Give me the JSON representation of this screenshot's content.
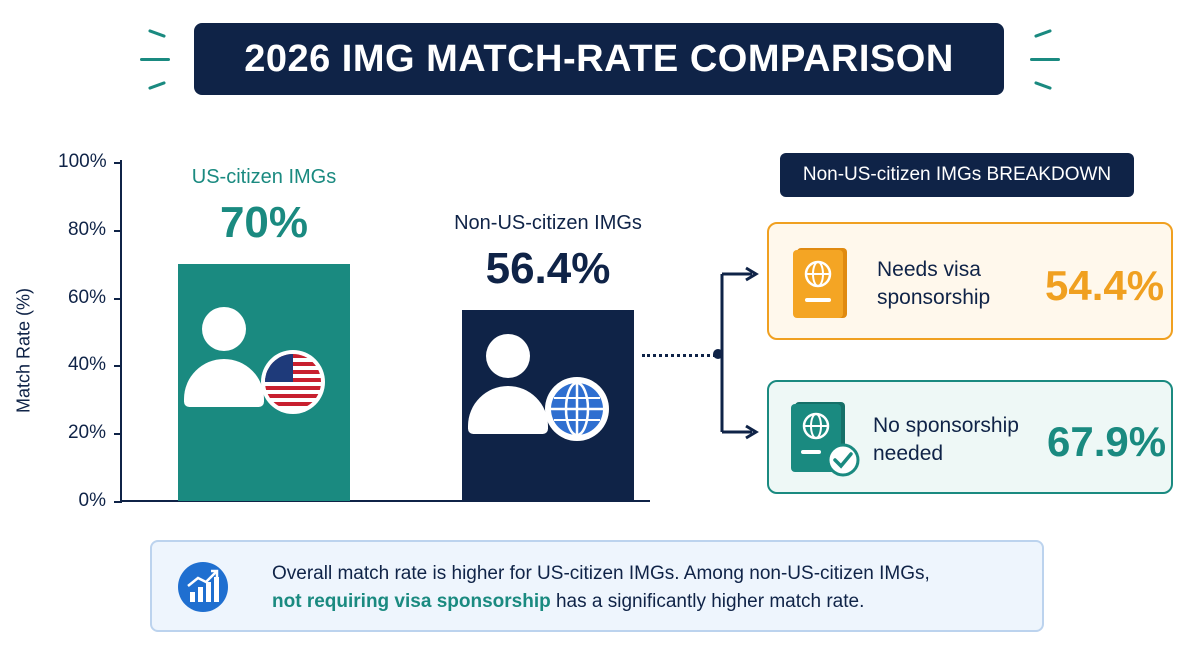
{
  "title": "2026 IMG MATCH-RATE COMPARISON",
  "chart_data": {
    "type": "bar",
    "categories": [
      "US-citizen IMGs",
      "Non-US-citizen IMGs"
    ],
    "values": [
      70,
      56.4
    ],
    "value_labels": [
      "70%",
      "56.4%"
    ],
    "ylabel": "Match Rate (%)",
    "ylim": [
      0,
      100
    ],
    "yticks": [
      "0%",
      "20%",
      "40%",
      "60%",
      "80%",
      "100%"
    ],
    "colors": [
      "#1a8a80",
      "#0f2347"
    ]
  },
  "breakdown": {
    "title": "Non-US-citizen IMGs BREAKDOWN",
    "items": [
      {
        "label_line1": "Needs visa",
        "label_line2": "sponsorship",
        "value": "54.4%",
        "color": "#f0a020",
        "icon": "passport-icon"
      },
      {
        "label_line1": "No sponsorship",
        "label_line2": "needed",
        "value": "67.9%",
        "color": "#1a8a80",
        "icon": "passport-check-icon"
      }
    ]
  },
  "summary": {
    "line1": "Overall match rate is higher for US-citizen IMGs. Among non-US-citizen IMGs,",
    "line2_highlight": "not requiring visa sponsorship",
    "line2_rest": " has a significantly higher match rate.",
    "icon": "trend-up-chart-icon"
  }
}
